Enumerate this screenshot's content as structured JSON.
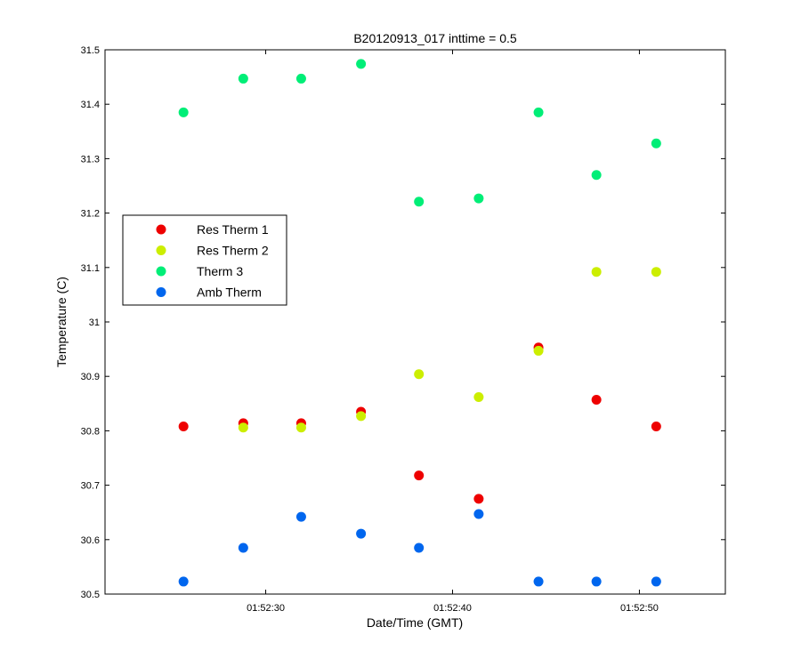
{
  "chart_data": {
    "type": "scatter",
    "title": "B20120913_017 inttime = 0.5",
    "xlabel": "Date/Time (GMT)",
    "ylabel": "Temperature (C)",
    "xlim": [
      "01:52:21.4",
      "01:52:54.6"
    ],
    "ylim": [
      30.5,
      31.5
    ],
    "x_ticks": [
      "01:52:30",
      "01:52:40",
      "01:52:50"
    ],
    "y_ticks": [
      "30.5",
      "30.6",
      "30.7",
      "30.8",
      "30.9",
      "31",
      "31.1",
      "31.2",
      "31.3",
      "31.4",
      "31.5"
    ],
    "legend_position": "center-left",
    "grid": false,
    "x": [
      "01:52:25.6",
      "01:52:28.8",
      "01:52:31.9",
      "01:52:35.1",
      "01:52:38.2",
      "01:52:41.4",
      "01:52:44.6",
      "01:52:47.7",
      "01:52:50.9"
    ],
    "series": [
      {
        "name": "Res Therm 1",
        "color": "#ee0000",
        "values": [
          30.808,
          30.814,
          30.814,
          30.835,
          30.718,
          30.675,
          30.953,
          30.857,
          30.808
        ]
      },
      {
        "name": "Res Therm 2",
        "color": "#ccee00",
        "values": [
          null,
          30.806,
          30.806,
          30.827,
          30.904,
          30.862,
          30.947,
          31.092,
          31.092
        ]
      },
      {
        "name": "Therm 3",
        "color": "#00ee77",
        "values": [
          31.385,
          31.447,
          31.447,
          31.474,
          31.221,
          31.227,
          31.385,
          31.27,
          31.328
        ]
      },
      {
        "name": "Amb Therm",
        "color": "#0066ee",
        "values": [
          30.523,
          30.585,
          30.642,
          30.611,
          30.585,
          30.647,
          30.523,
          30.523,
          30.523
        ]
      }
    ]
  }
}
